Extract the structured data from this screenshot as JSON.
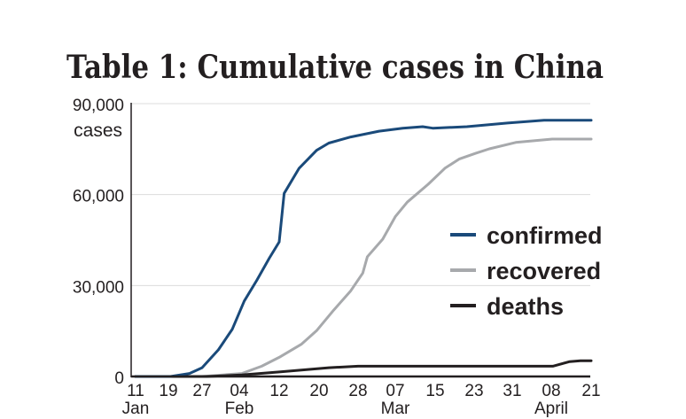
{
  "chart_data": {
    "type": "line",
    "title": "Table 1: Cumulative cases in China",
    "ylabel": "cases",
    "xlabel": "",
    "ylim": [
      0,
      90000
    ],
    "yticks": [
      {
        "value": 0,
        "label": "0"
      },
      {
        "value": 30000,
        "label": "30,000"
      },
      {
        "value": 60000,
        "label": "60,000"
      },
      {
        "value": 90000,
        "label": "90,000"
      }
    ],
    "x_unit": "days since Jan 11",
    "xticks": [
      {
        "day": 0,
        "label": "11",
        "month": "Jan"
      },
      {
        "day": 8,
        "label": "19",
        "month": ""
      },
      {
        "day": 16,
        "label": "27",
        "month": ""
      },
      {
        "day": 24,
        "label": "04",
        "month": "Feb"
      },
      {
        "day": 32,
        "label": "12",
        "month": ""
      },
      {
        "day": 40,
        "label": "20",
        "month": ""
      },
      {
        "day": 48,
        "label": "28",
        "month": ""
      },
      {
        "day": 56,
        "label": "07",
        "month": "Mar"
      },
      {
        "day": 64,
        "label": "15",
        "month": ""
      },
      {
        "day": 72,
        "label": "23",
        "month": ""
      },
      {
        "day": 80,
        "label": "31",
        "month": ""
      },
      {
        "day": 88,
        "label": "08",
        "month": "April"
      },
      {
        "day": 101,
        "label": "21",
        "month": ""
      }
    ],
    "grid": true,
    "legend_position": "right",
    "series": [
      {
        "name": "confirmed",
        "color": "#1a4a7a",
        "points": [
          [
            0,
            0
          ],
          [
            8.5,
            0
          ],
          [
            13,
            1000
          ],
          [
            16,
            2900
          ],
          [
            19.5,
            8800
          ],
          [
            22.5,
            15600
          ],
          [
            25,
            24900
          ],
          [
            27.5,
            31700
          ],
          [
            30,
            39000
          ],
          [
            32,
            44400
          ],
          [
            33,
            60400
          ],
          [
            36,
            68700
          ],
          [
            39.5,
            74600
          ],
          [
            42,
            77000
          ],
          [
            46.5,
            79000
          ],
          [
            52.5,
            80900
          ],
          [
            57.5,
            81900
          ],
          [
            61.5,
            82400
          ],
          [
            63.5,
            81900
          ],
          [
            70.5,
            82400
          ],
          [
            79,
            83600
          ],
          [
            86.5,
            84500
          ],
          [
            101,
            84500
          ]
        ]
      },
      {
        "name": "recovered",
        "color": "#a7a9ac",
        "points": [
          [
            0,
            0
          ],
          [
            16,
            0
          ],
          [
            24.5,
            1000
          ],
          [
            28.5,
            3400
          ],
          [
            32,
            6300
          ],
          [
            36.5,
            10700
          ],
          [
            39.5,
            15100
          ],
          [
            43,
            21900
          ],
          [
            46.5,
            28300
          ],
          [
            49,
            34100
          ],
          [
            50,
            39500
          ],
          [
            53.3,
            45300
          ],
          [
            56,
            52700
          ],
          [
            58.4,
            57500
          ],
          [
            62.6,
            63400
          ],
          [
            66,
            68700
          ],
          [
            68.9,
            71700
          ],
          [
            72.3,
            73600
          ],
          [
            75.2,
            75100
          ],
          [
            80.7,
            77200
          ],
          [
            88.3,
            78300
          ],
          [
            101,
            78300
          ]
        ]
      },
      {
        "name": "deaths",
        "color": "#231f20",
        "points": [
          [
            0,
            0
          ],
          [
            17,
            0
          ],
          [
            24.5,
            500
          ],
          [
            32,
            1500
          ],
          [
            42,
            2900
          ],
          [
            48,
            3400
          ],
          [
            88.5,
            3400
          ],
          [
            94,
            4900
          ],
          [
            97.5,
            5200
          ],
          [
            101,
            5200
          ]
        ]
      }
    ]
  }
}
